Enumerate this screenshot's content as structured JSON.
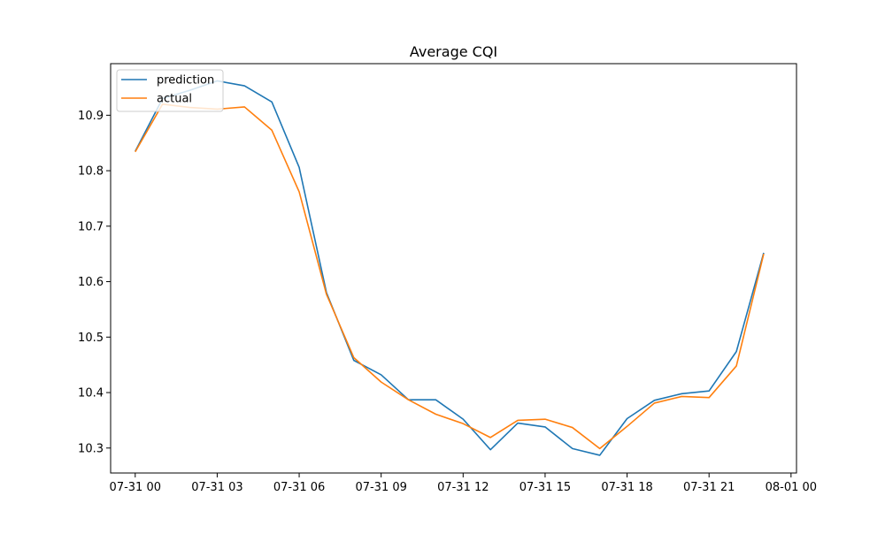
{
  "chart_data": {
    "type": "line",
    "title": "Average CQI",
    "xlabel": "",
    "ylabel": "",
    "x": [
      "07-31 00",
      "07-31 01",
      "07-31 02",
      "07-31 03",
      "07-31 04",
      "07-31 05",
      "07-31 06",
      "07-31 07",
      "07-31 08",
      "07-31 09",
      "07-31 10",
      "07-31 11",
      "07-31 12",
      "07-31 13",
      "07-31 14",
      "07-31 15",
      "07-31 16",
      "07-31 17",
      "07-31 18",
      "07-31 19",
      "07-31 20",
      "07-31 21",
      "07-31 22",
      "07-31 23"
    ],
    "xticks": [
      "07-31 00",
      "07-31 03",
      "07-31 06",
      "07-31 09",
      "07-31 12",
      "07-31 15",
      "07-31 18",
      "07-31 21",
      "08-01 00"
    ],
    "yticks": [
      "10.3",
      "10.4",
      "10.5",
      "10.6",
      "10.7",
      "10.8",
      "10.9"
    ],
    "xlim": [
      -0.9,
      24.2
    ],
    "ylim": [
      10.255,
      10.993
    ],
    "grid": false,
    "legend_position": "top-left",
    "series": [
      {
        "name": "prediction",
        "color": "#1f77b4",
        "values": [
          10.835,
          10.93,
          10.945,
          10.962,
          10.953,
          10.924,
          10.806,
          10.58,
          10.458,
          10.432,
          10.387,
          10.387,
          10.352,
          10.297,
          10.345,
          10.338,
          10.299,
          10.287,
          10.353,
          10.386,
          10.398,
          10.403,
          10.474,
          10.652
        ]
      },
      {
        "name": "actual",
        "color": "#ff7f0e",
        "values": [
          10.834,
          10.92,
          10.914,
          10.911,
          10.915,
          10.873,
          10.762,
          10.577,
          10.463,
          10.419,
          10.387,
          10.361,
          10.344,
          10.319,
          10.35,
          10.352,
          10.337,
          10.299,
          10.339,
          10.381,
          10.393,
          10.391,
          10.448,
          10.65
        ]
      }
    ]
  }
}
